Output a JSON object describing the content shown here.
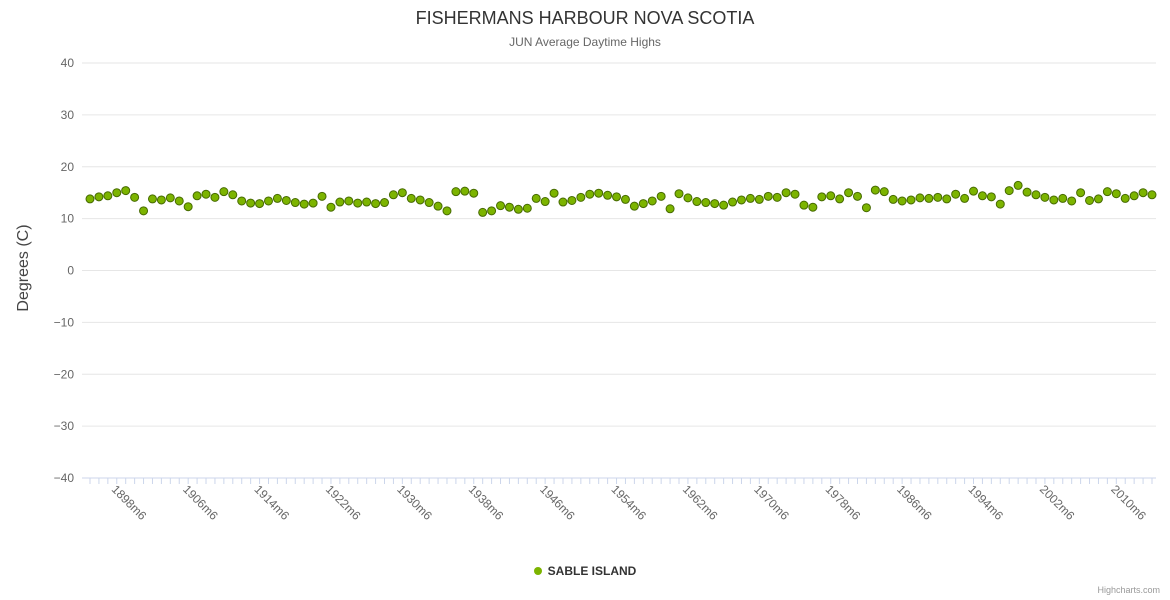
{
  "chart": {
    "credits": "Highcharts.com",
    "colors": {
      "point_fill": "#7cb400",
      "point_stroke": "#466a00",
      "grid": "#e6e6e6",
      "axis_line": "#ccd6eb",
      "tick": "#ccd6eb",
      "label_color": "#666666"
    }
  },
  "chart_data": {
    "type": "scatter",
    "title": "FISHERMANS HARBOUR NOVA SCOTIA",
    "subtitle": "JUN Average Daytime Highs",
    "xlabel": "",
    "ylabel": "Degrees (C)",
    "ylim": [
      -40,
      40
    ],
    "y_ticks": [
      40,
      30,
      20,
      10,
      0,
      -10,
      -20,
      -30,
      -40
    ],
    "grid": true,
    "legend_position": "bottom",
    "x_tick_labels": [
      "1898m6",
      "1906m6",
      "1914m6",
      "1922m6",
      "1930m6",
      "1938m6",
      "1946m6",
      "1954m6",
      "1962m6",
      "1970m6",
      "1978m6",
      "1986m6",
      "1994m6",
      "2002m6",
      "2010m6"
    ],
    "series": [
      {
        "name": "SABLE ISLAND",
        "x": [
          1896,
          1897,
          1898,
          1899,
          1900,
          1901,
          1902,
          1903,
          1904,
          1905,
          1906,
          1907,
          1908,
          1909,
          1910,
          1911,
          1912,
          1913,
          1914,
          1915,
          1916,
          1917,
          1918,
          1919,
          1920,
          1921,
          1922,
          1923,
          1924,
          1925,
          1926,
          1927,
          1928,
          1929,
          1930,
          1931,
          1932,
          1933,
          1934,
          1935,
          1936,
          1937,
          1938,
          1939,
          1940,
          1941,
          1942,
          1943,
          1944,
          1945,
          1946,
          1947,
          1948,
          1949,
          1950,
          1951,
          1952,
          1953,
          1954,
          1955,
          1956,
          1957,
          1958,
          1959,
          1960,
          1961,
          1962,
          1963,
          1964,
          1965,
          1966,
          1967,
          1968,
          1969,
          1970,
          1971,
          1972,
          1973,
          1974,
          1975,
          1976,
          1977,
          1978,
          1979,
          1980,
          1981,
          1982,
          1983,
          1984,
          1985,
          1986,
          1987,
          1988,
          1989,
          1990,
          1991,
          1992,
          1993,
          1994,
          1995,
          1996,
          1997,
          1998,
          1999,
          2000,
          2001,
          2002,
          2003,
          2004,
          2005,
          2006,
          2007,
          2008,
          2009,
          2010,
          2011,
          2012,
          2013,
          2014,
          2015
        ],
        "values": [
          13.8,
          14.2,
          14.4,
          15.0,
          15.4,
          14.1,
          11.5,
          13.8,
          13.6,
          14.0,
          13.4,
          12.3,
          14.4,
          14.7,
          14.1,
          15.2,
          14.6,
          13.4,
          13.0,
          12.9,
          13.4,
          13.9,
          13.5,
          13.1,
          12.8,
          13.0,
          14.3,
          12.2,
          13.2,
          13.4,
          13.0,
          13.2,
          12.9,
          13.1,
          14.6,
          15.0,
          13.9,
          13.6,
          13.1,
          12.4,
          11.5,
          15.2,
          15.3,
          14.9,
          11.2,
          11.5,
          12.5,
          12.2,
          11.8,
          12.0,
          13.9,
          13.3,
          14.9,
          13.2,
          13.5,
          14.1,
          14.7,
          14.9,
          14.5,
          14.2,
          13.7,
          12.4,
          12.9,
          13.4,
          14.3,
          11.9,
          14.8,
          14.0,
          13.3,
          13.1,
          12.9,
          12.6,
          13.2,
          13.6,
          13.9,
          13.7,
          14.3,
          14.1,
          15.0,
          14.7,
          12.6,
          12.2,
          14.2,
          14.4,
          13.8,
          15.0,
          14.3,
          12.1,
          15.5,
          15.2,
          13.7,
          13.4,
          13.6,
          14.0,
          13.9,
          14.1,
          13.8,
          14.7,
          13.9,
          15.3,
          14.4,
          14.2,
          12.8,
          15.4,
          16.4,
          15.1,
          14.6,
          14.1,
          13.6,
          13.9,
          13.4,
          15.0,
          13.5,
          13.8,
          15.2,
          14.8,
          13.9,
          14.4,
          15.0,
          14.6
        ]
      }
    ]
  }
}
